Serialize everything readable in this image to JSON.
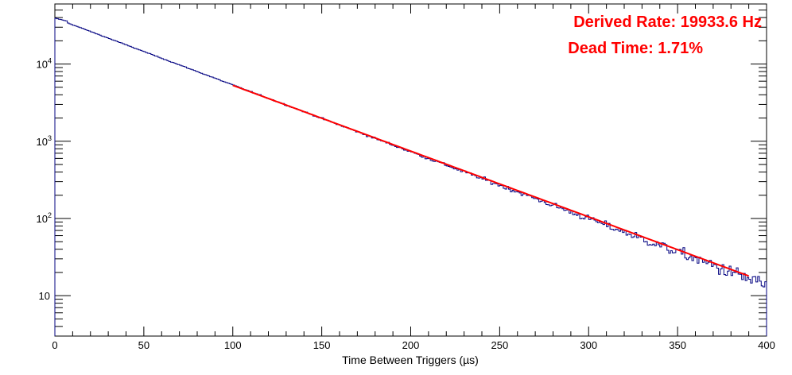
{
  "chart_data": {
    "type": "histogram",
    "title": "",
    "xlabel": "Time Between Triggers (µs)",
    "ylabel": "",
    "xlim": [
      0,
      400
    ],
    "ylim": [
      3,
      60000
    ],
    "yscale": "log",
    "x_ticks": [
      "0",
      "50",
      "100",
      "150",
      "200",
      "250",
      "300",
      "350",
      "400"
    ],
    "y_ticks": [
      {
        "value": 10,
        "base": "10",
        "exp": ""
      },
      {
        "value": 100,
        "base": "10",
        "exp": "2"
      },
      {
        "value": 1000,
        "base": "10",
        "exp": "3"
      },
      {
        "value": 10000,
        "base": "10",
        "exp": "4"
      }
    ],
    "histogram": {
      "name": "",
      "color": "#000080",
      "bin_width": 1,
      "x": [
        0,
        400
      ],
      "peak_value": 39000,
      "decay_rate_per_us": 0.0199336,
      "knee_us": 7,
      "value_at_400us": 14
    },
    "fit": {
      "name": "",
      "color": "#ff0000",
      "type": "exponential",
      "x_range": [
        100,
        390
      ],
      "y_at_100": 5300,
      "y_at_390": 18
    },
    "annotations": [
      {
        "text": "Derived Rate: 19933.6 Hz",
        "color": "#ff0000"
      },
      {
        "text": "Dead Time: 1.71%",
        "color": "#ff0000"
      }
    ],
    "grid": false,
    "legend": "none"
  }
}
